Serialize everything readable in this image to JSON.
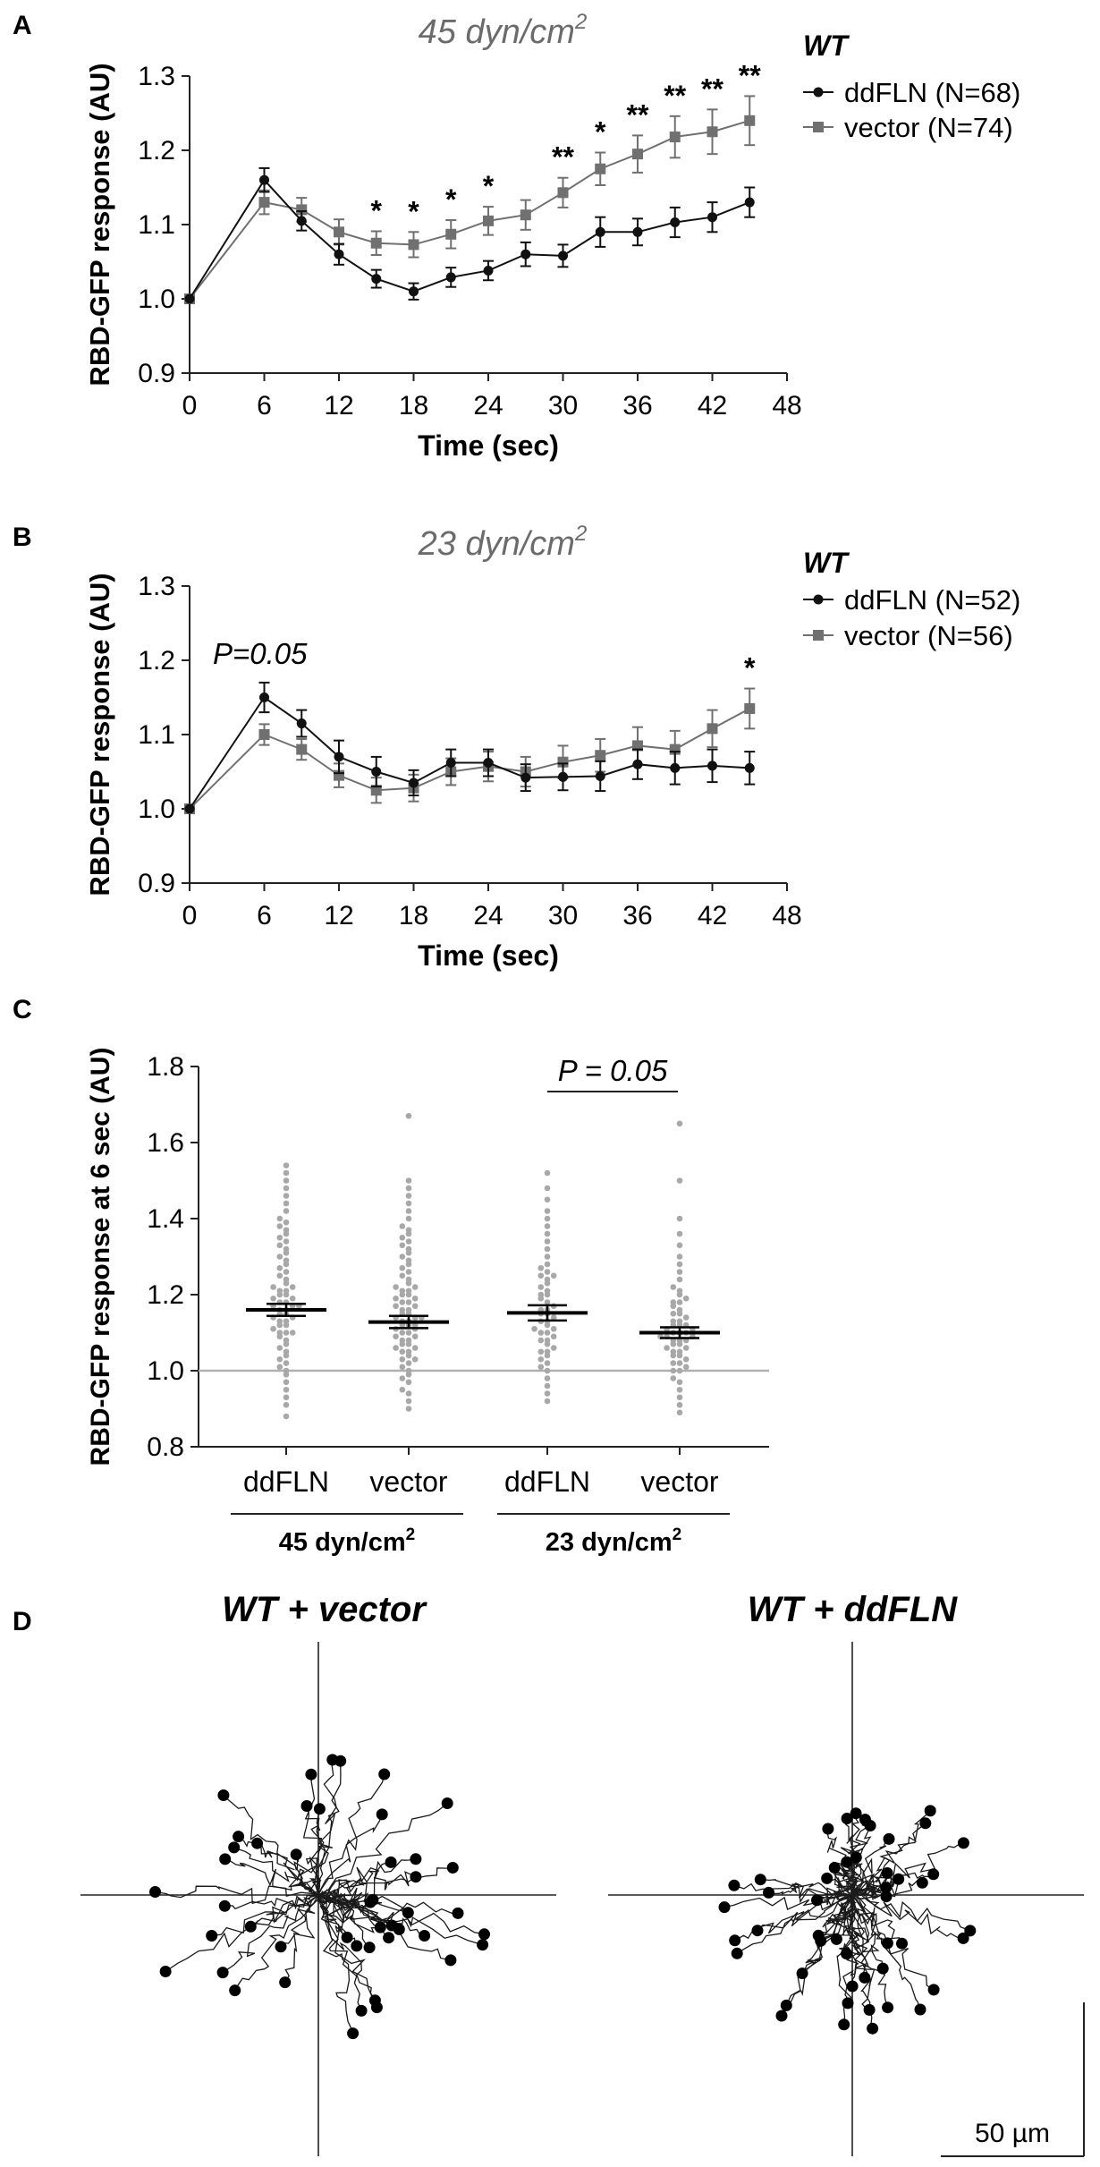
{
  "colors": {
    "ddfln": "#111111",
    "vector": "#707070",
    "dots": "#a8a8a8",
    "title_gray": "#6b6b6b",
    "baseline": "#b0b0b0",
    "axis": "#222222"
  },
  "panelA": {
    "letter": "A",
    "title": "45 dyn/cm",
    "title_sup": "2",
    "group_label": "WT",
    "legend": [
      "ddFLN (N=68)",
      "vector (N=74)"
    ]
  },
  "panelB": {
    "letter": "B",
    "title": "23 dyn/cm",
    "title_sup": "2",
    "group_label": "WT",
    "legend": [
      "ddFLN (N=52)",
      "vector (N=56)"
    ],
    "annotation": "P=0.05"
  },
  "panelC": {
    "letter": "C",
    "group1_label": "45 dyn/cm",
    "group2_label": "23 dyn/cm",
    "group_sup": "2",
    "p_annotation": "P = 0.05"
  },
  "panelD": {
    "letter": "D",
    "left_title": "WT + vector",
    "right_title": "WT + ddFLN",
    "scale_label": "50 µm",
    "scale_um": 50
  },
  "chart_data": [
    {
      "id": "A",
      "type": "line",
      "title": "45 dyn/cm2",
      "xlabel": "Time (sec)",
      "ylabel": "RBD-GFP response (AU)",
      "xlim": [
        0,
        48
      ],
      "ylim": [
        0.9,
        1.3
      ],
      "xticks": [
        0,
        6,
        12,
        18,
        24,
        30,
        36,
        42,
        48
      ],
      "yticks": [
        0.9,
        1.0,
        1.1,
        1.2,
        1.3
      ],
      "x": [
        0,
        6,
        9,
        12,
        15,
        18,
        21,
        24,
        27,
        30,
        33,
        36,
        39,
        42,
        45
      ],
      "series": [
        {
          "name": "ddFLN (N=68)",
          "marker": "circle",
          "values": [
            1.0,
            1.16,
            1.105,
            1.06,
            1.027,
            1.01,
            1.029,
            1.038,
            1.06,
            1.058,
            1.09,
            1.09,
            1.103,
            1.11,
            1.13
          ],
          "errors": [
            0,
            0.016,
            0.013,
            0.014,
            0.012,
            0.011,
            0.013,
            0.013,
            0.016,
            0.015,
            0.02,
            0.018,
            0.02,
            0.02,
            0.02
          ]
        },
        {
          "name": "vector (N=74)",
          "marker": "square",
          "values": [
            1.0,
            1.13,
            1.12,
            1.09,
            1.075,
            1.073,
            1.087,
            1.105,
            1.113,
            1.143,
            1.175,
            1.195,
            1.218,
            1.225,
            1.24
          ],
          "errors": [
            0,
            0.016,
            0.016,
            0.017,
            0.016,
            0.017,
            0.019,
            0.019,
            0.02,
            0.02,
            0.022,
            0.025,
            0.028,
            0.03,
            0.033
          ]
        }
      ],
      "significance": [
        {
          "x": 15,
          "label": "*"
        },
        {
          "x": 18,
          "label": "*"
        },
        {
          "x": 21,
          "label": "*"
        },
        {
          "x": 24,
          "label": "*"
        },
        {
          "x": 30,
          "label": "**"
        },
        {
          "x": 33,
          "label": "*"
        },
        {
          "x": 36,
          "label": "**"
        },
        {
          "x": 39,
          "label": "**"
        },
        {
          "x": 42,
          "label": "**"
        },
        {
          "x": 45,
          "label": "**"
        }
      ]
    },
    {
      "id": "B",
      "type": "line",
      "title": "23 dyn/cm2",
      "xlabel": "Time (sec)",
      "ylabel": "RBD-GFP response (AU)",
      "xlim": [
        0,
        48
      ],
      "ylim": [
        0.9,
        1.3
      ],
      "xticks": [
        0,
        6,
        12,
        18,
        24,
        30,
        36,
        42,
        48
      ],
      "yticks": [
        0.9,
        1.0,
        1.1,
        1.2,
        1.3
      ],
      "x": [
        0,
        6,
        9,
        12,
        15,
        18,
        21,
        24,
        27,
        30,
        33,
        36,
        39,
        42,
        45
      ],
      "series": [
        {
          "name": "ddFLN (N=52)",
          "marker": "circle",
          "values": [
            1.0,
            1.15,
            1.115,
            1.07,
            1.05,
            1.035,
            1.062,
            1.062,
            1.042,
            1.043,
            1.044,
            1.06,
            1.055,
            1.058,
            1.055
          ],
          "errors": [
            0,
            0.02,
            0.018,
            0.022,
            0.02,
            0.017,
            0.018,
            0.018,
            0.018,
            0.018,
            0.02,
            0.02,
            0.022,
            0.022,
            0.022
          ]
        },
        {
          "name": "vector (N=56)",
          "marker": "square",
          "values": [
            1.0,
            1.1,
            1.08,
            1.045,
            1.025,
            1.028,
            1.05,
            1.057,
            1.05,
            1.063,
            1.072,
            1.085,
            1.08,
            1.108,
            1.135
          ],
          "errors": [
            0,
            0.014,
            0.014,
            0.016,
            0.017,
            0.018,
            0.018,
            0.02,
            0.02,
            0.022,
            0.022,
            0.025,
            0.025,
            0.025,
            0.027
          ]
        }
      ],
      "significance": [
        {
          "x": 45,
          "label": "*"
        }
      ]
    },
    {
      "id": "C",
      "type": "scatter",
      "ylabel": "RBD-GFP response at 6 sec (AU)",
      "ylim": [
        0.8,
        1.8
      ],
      "yticks": [
        0.8,
        1.0,
        1.2,
        1.4,
        1.6,
        1.8
      ],
      "categories": [
        "ddFLN",
        "vector",
        "ddFLN",
        "vector"
      ],
      "groups": [
        "45 dyn/cm2",
        "45 dyn/cm2",
        "23 dyn/cm2",
        "23 dyn/cm2"
      ],
      "baseline": 1.0,
      "means": [
        1.16,
        1.128,
        1.152,
        1.1
      ],
      "sem": [
        0.016,
        0.016,
        0.02,
        0.014
      ],
      "points": [
        [
          0.88,
          0.91,
          0.93,
          0.95,
          0.97,
          0.99,
          1.0,
          1.01,
          1.02,
          1.03,
          1.04,
          1.05,
          1.06,
          1.07,
          1.08,
          1.09,
          1.1,
          1.1,
          1.11,
          1.12,
          1.12,
          1.13,
          1.14,
          1.14,
          1.15,
          1.15,
          1.16,
          1.16,
          1.17,
          1.17,
          1.18,
          1.18,
          1.19,
          1.19,
          1.2,
          1.2,
          1.21,
          1.21,
          1.22,
          1.22,
          1.23,
          1.24,
          1.25,
          1.26,
          1.27,
          1.28,
          1.29,
          1.3,
          1.31,
          1.32,
          1.33,
          1.34,
          1.35,
          1.36,
          1.37,
          1.38,
          1.39,
          1.4,
          1.42,
          1.44,
          1.46,
          1.48,
          1.5,
          1.52,
          1.54,
          1.1,
          1.13,
          1.17
        ],
        [
          0.9,
          0.92,
          0.94,
          0.95,
          0.97,
          0.98,
          0.99,
          1.0,
          1.01,
          1.02,
          1.03,
          1.04,
          1.05,
          1.05,
          1.06,
          1.07,
          1.08,
          1.08,
          1.09,
          1.1,
          1.1,
          1.11,
          1.11,
          1.12,
          1.12,
          1.13,
          1.13,
          1.14,
          1.14,
          1.15,
          1.15,
          1.16,
          1.16,
          1.17,
          1.17,
          1.18,
          1.18,
          1.19,
          1.2,
          1.2,
          1.21,
          1.22,
          1.22,
          1.23,
          1.24,
          1.25,
          1.26,
          1.27,
          1.28,
          1.29,
          1.3,
          1.31,
          1.32,
          1.33,
          1.34,
          1.35,
          1.36,
          1.37,
          1.38,
          1.4,
          1.42,
          1.44,
          1.46,
          1.48,
          1.5,
          1.67,
          1.06,
          1.09,
          1.12,
          1.14,
          1.03,
          1.07,
          1.19,
          1.21
        ],
        [
          0.92,
          0.94,
          0.96,
          0.98,
          1.0,
          1.01,
          1.02,
          1.03,
          1.04,
          1.05,
          1.06,
          1.07,
          1.08,
          1.09,
          1.1,
          1.1,
          1.11,
          1.12,
          1.13,
          1.14,
          1.15,
          1.16,
          1.17,
          1.18,
          1.19,
          1.2,
          1.21,
          1.22,
          1.23,
          1.24,
          1.25,
          1.26,
          1.27,
          1.28,
          1.3,
          1.32,
          1.34,
          1.36,
          1.38,
          1.4,
          1.42,
          1.45,
          1.48,
          1.52,
          1.13,
          1.16,
          1.08,
          1.2,
          1.05,
          1.11,
          1.25,
          1.15
        ],
        [
          0.89,
          0.91,
          0.93,
          0.95,
          0.97,
          0.98,
          1.0,
          1.01,
          1.02,
          1.03,
          1.04,
          1.05,
          1.06,
          1.07,
          1.08,
          1.08,
          1.09,
          1.09,
          1.1,
          1.1,
          1.11,
          1.11,
          1.12,
          1.12,
          1.13,
          1.14,
          1.15,
          1.16,
          1.17,
          1.18,
          1.19,
          1.2,
          1.21,
          1.22,
          1.24,
          1.26,
          1.28,
          1.3,
          1.33,
          1.36,
          1.4,
          1.5,
          1.65,
          1.04,
          1.07,
          1.1,
          1.13,
          1.0,
          1.06,
          1.02,
          1.09,
          1.12,
          1.15,
          1.18,
          1.05,
          1.08
        ]
      ]
    }
  ]
}
